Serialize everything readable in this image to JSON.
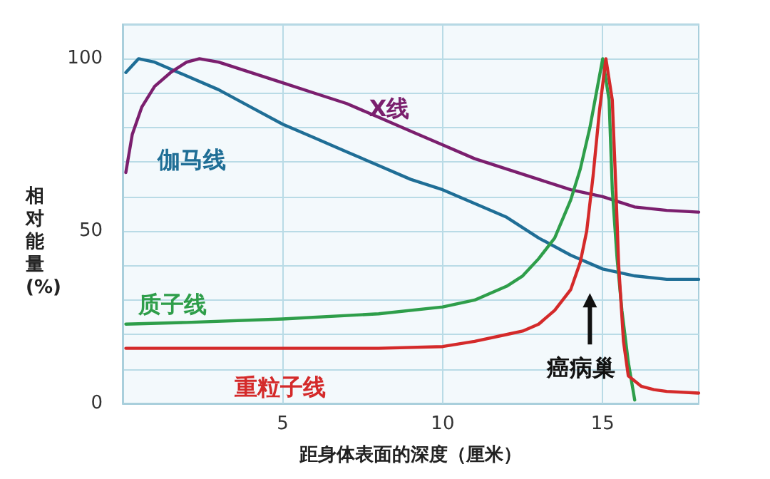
{
  "chart_data": {
    "type": "line",
    "xlabel": "距身体表面的深度（厘米）",
    "ylabel": "相对能量(%)",
    "xlim": [
      0,
      18
    ],
    "xticks": [
      5,
      10,
      15
    ],
    "ylim": [
      0,
      110
    ],
    "yticks": [
      0,
      {
        "value": 10,
        "label": null
      },
      {
        "value": 20,
        "label": null
      },
      {
        "value": 30,
        "label": null
      },
      {
        "value": 40,
        "label": null
      },
      50,
      {
        "value": 60,
        "label": null
      },
      {
        "value": 70,
        "label": null
      },
      {
        "value": 80,
        "label": null
      },
      {
        "value": 90,
        "label": null
      },
      100,
      {
        "value": 110,
        "label": null
      }
    ],
    "grid": true,
    "legend": false,
    "marker": "none",
    "line_style": "solid",
    "series": [
      {
        "name": "伽马线",
        "color": "#1f6e96",
        "x": [
          0.1,
          0.5,
          1,
          2,
          3,
          4,
          5,
          6,
          7,
          8,
          9,
          10,
          11,
          12,
          13,
          14,
          15,
          16,
          17,
          18
        ],
        "values": [
          96,
          100,
          99,
          95,
          91,
          86,
          81,
          77,
          73,
          69,
          65,
          62,
          58,
          54,
          48,
          43,
          39,
          37,
          36,
          36
        ]
      },
      {
        "name": "X线",
        "color": "#7b1f6e",
        "x": [
          0.1,
          0.3,
          0.6,
          1,
          1.5,
          2,
          2.4,
          3,
          4,
          5,
          6,
          7,
          8,
          9,
          10,
          11,
          12,
          13,
          14,
          15,
          16,
          17,
          18
        ],
        "values": [
          67,
          78,
          86,
          92,
          96,
          99,
          100,
          99,
          96,
          93,
          90,
          87,
          83,
          79,
          75,
          71,
          68,
          65,
          62,
          60,
          57,
          56,
          55.5
        ]
      },
      {
        "name": "质子线",
        "color": "#2e9e4a",
        "x": [
          0.1,
          2,
          5,
          8,
          10,
          11,
          12,
          12.5,
          13,
          13.5,
          14,
          14.3,
          14.6,
          14.8,
          15,
          15.2,
          15.3,
          15.45,
          15.6,
          15.8,
          16
        ],
        "values": [
          23,
          23.5,
          24.5,
          26,
          28,
          30,
          34,
          37,
          42,
          48,
          59,
          68,
          80,
          90,
          100,
          88,
          62,
          42,
          27,
          12,
          1
        ]
      },
      {
        "name": "重粒子线",
        "color": "#d42a2a",
        "x": [
          0.1,
          2,
          5,
          8,
          10,
          11,
          12,
          12.5,
          13,
          13.5,
          14,
          14.3,
          14.5,
          14.7,
          14.9,
          15.1,
          15.3,
          15.4,
          15.5,
          15.65,
          15.8,
          16.2,
          16.6,
          17,
          18
        ],
        "values": [
          16,
          16,
          16,
          16,
          16.5,
          18,
          20,
          21,
          23,
          27,
          33,
          41,
          50,
          66,
          85,
          100,
          88,
          65,
          40,
          18,
          8,
          5,
          4,
          3.5,
          3
        ]
      }
    ],
    "annotations": [
      "癌病巢"
    ]
  }
}
